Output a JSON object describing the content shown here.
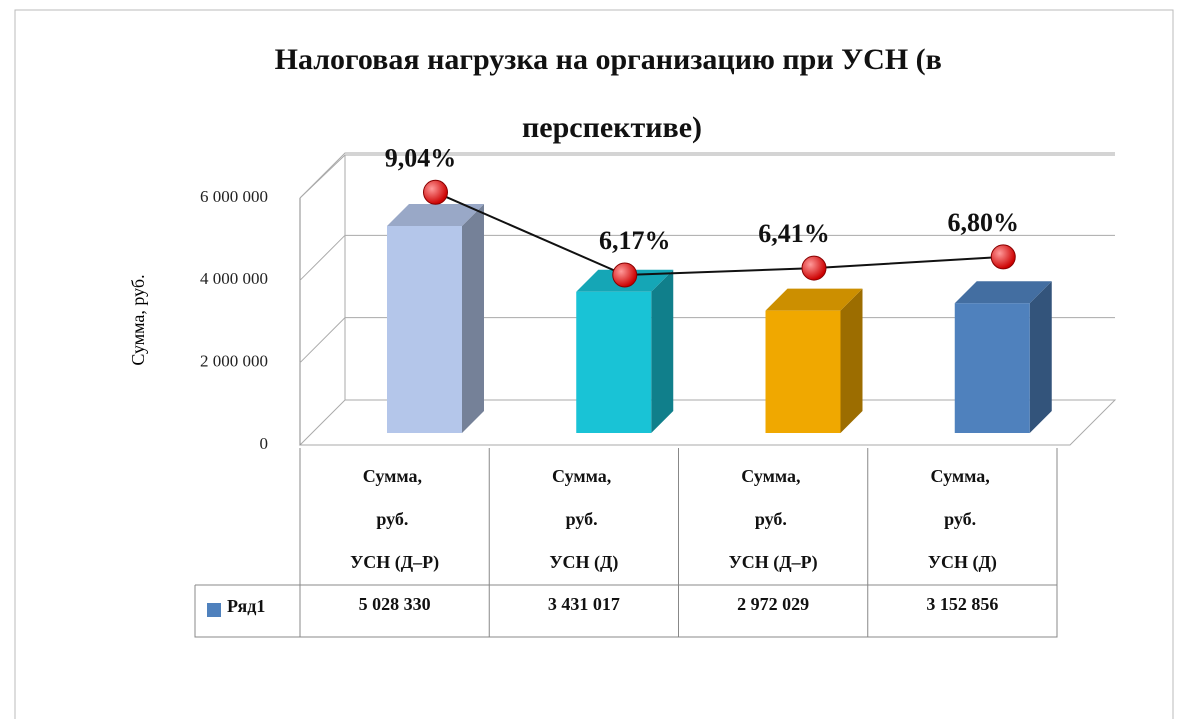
{
  "chart_data": {
    "type": "bar3d",
    "title": "Налоговая нагрузка на организацию при УСН (в перспективе)",
    "y_label": "Сумма, руб.",
    "categories": [
      "Сумма, руб. УСН (Д–Р)",
      "Сумма, руб. УСН (Д)",
      "Сумма, руб. УСН (Д–Р)",
      "Сумма, руб. УСН (Д)"
    ],
    "series": [
      {
        "name": "Ряд1",
        "color": "#4f81bd",
        "colors": [
          "#b4c6ea",
          "#19c3d6",
          "#f0a800",
          "#4f81bd"
        ],
        "values": [
          5028330,
          3431017,
          2972029,
          3152856
        ],
        "value_labels": [
          "5 028 330",
          "3 431 017",
          "2 972 029",
          "3 152 856"
        ]
      },
      {
        "type": "line",
        "axis": "y2",
        "color": "#cc0000",
        "values": [
          9.04,
          6.17,
          6.41,
          6.8
        ],
        "value_labels": [
          "9,04%",
          "6,17%",
          "6,41%",
          "6,80%"
        ]
      }
    ],
    "ylim": [
      0,
      6000000
    ],
    "yticks": [
      0,
      {
        "value": 2000000,
        "label": "2 000 000"
      },
      {
        "value": 4000000,
        "label": "4 000 000"
      },
      {
        "value": 6000000,
        "label": "6 000 000"
      }
    ],
    "y2lim": [
      1.07,
      9.64
    ],
    "grid": true,
    "data_table": true
  }
}
